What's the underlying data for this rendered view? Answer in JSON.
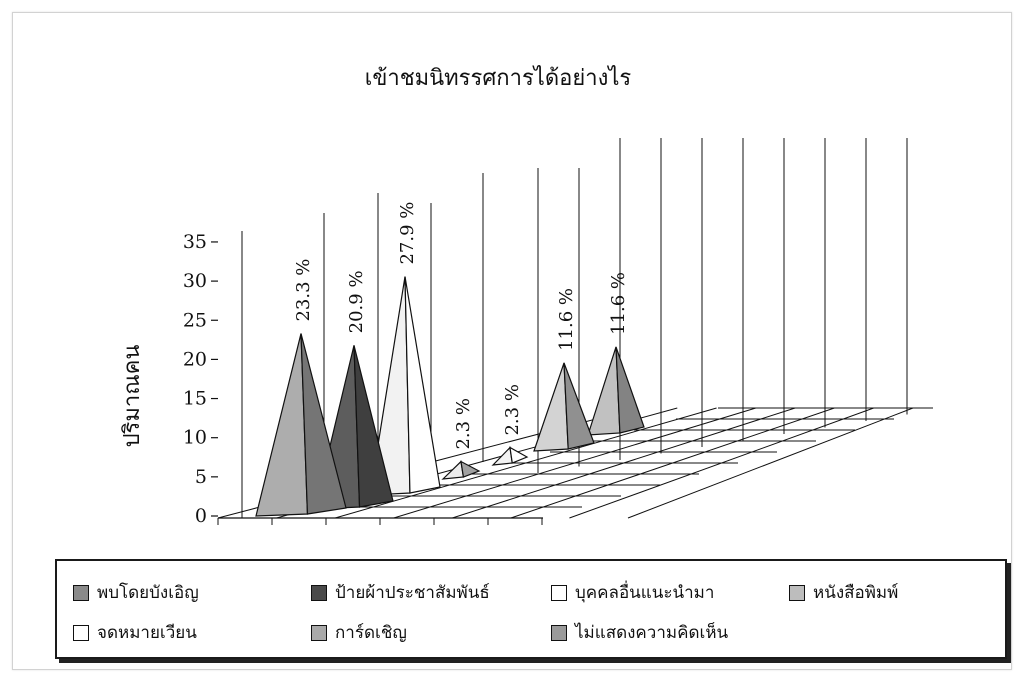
{
  "chart_data": {
    "type": "bar",
    "title": "เข้าชมนิทรรศการได้อย่างไร",
    "ylabel": "ปริมาณคน",
    "xlabel": "",
    "ylim": [
      0,
      35
    ],
    "y_ticks": [
      "0",
      "5",
      "10",
      "15",
      "20",
      "25",
      "30",
      "35"
    ],
    "grid": true,
    "legend_position": "bottom",
    "series": [
      {
        "name": "พบโดยบังเอิญ",
        "value": 23.3,
        "label": "23.3 %",
        "color": "#8a8a8a"
      },
      {
        "name": "ป้ายผ้าประชาสัมพันธ์",
        "value": 20.9,
        "label": "20.9 %",
        "color": "#4a4a4a"
      },
      {
        "name": "บุคคลอื่นแนะนำมา",
        "value": 27.9,
        "label": "27.9 %",
        "color": "#ffffff"
      },
      {
        "name": "หนังสือพิมพ์",
        "value": 2.3,
        "label": "2.3 %",
        "color": "#bdbdbd"
      },
      {
        "name": "จดหมายเวียน",
        "value": 2.3,
        "label": "2.3 %",
        "color": "#ffffff"
      },
      {
        "name": "การ์ดเชิญ",
        "value": 11.6,
        "label": "11.6 %",
        "color": "#a9a9a9"
      },
      {
        "name": "ไม่แสดงความคิดเห็น",
        "value": 11.6,
        "label": "11.6 %",
        "color": "#9a9a9a"
      }
    ]
  }
}
